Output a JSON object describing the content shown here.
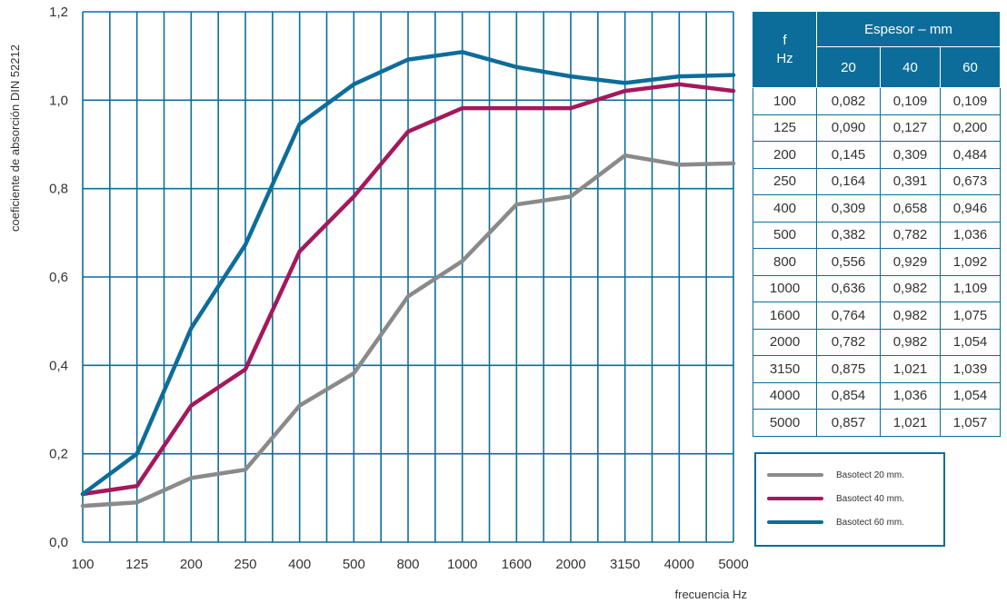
{
  "chart_data": {
    "type": "line",
    "title": "",
    "xlabel": "frecuencia Hz",
    "ylabel": "coeficiente de absorción DIN 52212",
    "categories": [
      "100",
      "125",
      "200",
      "250",
      "400",
      "500",
      "800",
      "1000",
      "1600",
      "2000",
      "3150",
      "4000",
      "5000"
    ],
    "ylim": [
      0.0,
      1.2
    ],
    "yticks": [
      "0,0",
      "0,2",
      "0,4",
      "0,6",
      "0,8",
      "1,0",
      "1,2"
    ],
    "grid": true,
    "legend_position": "bottom-right",
    "series": [
      {
        "name": "Basotect 20 mm.",
        "color": "#8a8a8a",
        "values": [
          0.082,
          0.09,
          0.145,
          0.164,
          0.309,
          0.382,
          0.556,
          0.636,
          0.764,
          0.782,
          0.875,
          0.854,
          0.857
        ]
      },
      {
        "name": "Basotect 40 mm.",
        "color": "#a3195b",
        "values": [
          0.109,
          0.127,
          0.309,
          0.391,
          0.658,
          0.782,
          0.929,
          0.982,
          0.982,
          0.982,
          1.021,
          1.036,
          1.021
        ]
      },
      {
        "name": "Basotect 60 mm.",
        "color": "#0d6d9a",
        "values": [
          0.109,
          0.2,
          0.484,
          0.673,
          0.946,
          1.036,
          1.092,
          1.109,
          1.075,
          1.054,
          1.039,
          1.054,
          1.057
        ]
      }
    ]
  },
  "table": {
    "f_header_line1": "f",
    "f_header_line2": "Hz",
    "group_header": "Espesor – mm",
    "columns": [
      "20",
      "40",
      "60"
    ],
    "rows": [
      [
        "100",
        "0,082",
        "0,109",
        "0,109"
      ],
      [
        "125",
        "0,090",
        "0,127",
        "0,200"
      ],
      [
        "200",
        "0,145",
        "0,309",
        "0,484"
      ],
      [
        "250",
        "0,164",
        "0,391",
        "0,673"
      ],
      [
        "400",
        "0,309",
        "0,658",
        "0,946"
      ],
      [
        "500",
        "0,382",
        "0,782",
        "1,036"
      ],
      [
        "800",
        "0,556",
        "0,929",
        "1,092"
      ],
      [
        "1000",
        "0,636",
        "0,982",
        "1,109"
      ],
      [
        "1600",
        "0,764",
        "0,982",
        "1,075"
      ],
      [
        "2000",
        "0,782",
        "0,982",
        "1,054"
      ],
      [
        "3150",
        "0,875",
        "1,021",
        "1,039"
      ],
      [
        "4000",
        "0,854",
        "1,036",
        "1,054"
      ],
      [
        "5000",
        "0,857",
        "1,021",
        "1,057"
      ]
    ]
  },
  "colors": {
    "grid": "#0d6d9a",
    "series_20": "#8a8a8a",
    "series_40": "#a3195b",
    "series_60": "#0d6d9a"
  }
}
